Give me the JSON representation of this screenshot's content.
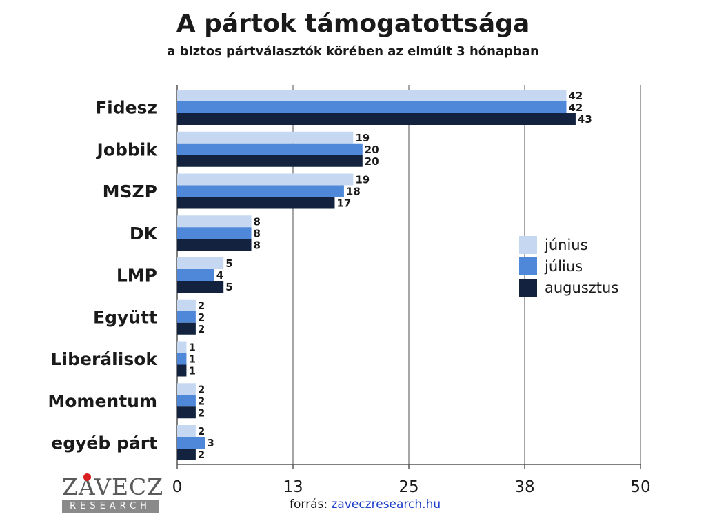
{
  "chart_data": {
    "type": "bar",
    "orientation": "horizontal",
    "title": "A pártok támogatottsága",
    "subtitle": "a biztos pártválasztók körében az elmúlt 3 hónapban",
    "categories": [
      "Fidesz",
      "Jobbik",
      "MSZP",
      "DK",
      "LMP",
      "Együtt",
      "Liberálisok",
      "Momentum",
      "egyéb párt"
    ],
    "series": [
      {
        "name": "június",
        "color": "#c6d8f1",
        "values": [
          42,
          19,
          19,
          8,
          5,
          2,
          1,
          2,
          2
        ]
      },
      {
        "name": "július",
        "color": "#4f88d8",
        "values": [
          42,
          20,
          18,
          8,
          4,
          2,
          1,
          2,
          3
        ]
      },
      {
        "name": "augusztus",
        "color": "#13233f",
        "values": [
          43,
          20,
          17,
          8,
          5,
          2,
          1,
          2,
          2
        ]
      }
    ],
    "xlim": [
      0,
      50
    ],
    "xticks": [
      0,
      12.5,
      25,
      37.5,
      50
    ],
    "xtick_labels": [
      "0",
      "13",
      "25",
      "38",
      "50"
    ],
    "grid": true,
    "legend_position": "right"
  },
  "logo": {
    "name": "ZAVECZ",
    "tagline": "RESEARCH"
  },
  "source": {
    "label": "forrás:",
    "link": "zaveczresearch.hu"
  }
}
